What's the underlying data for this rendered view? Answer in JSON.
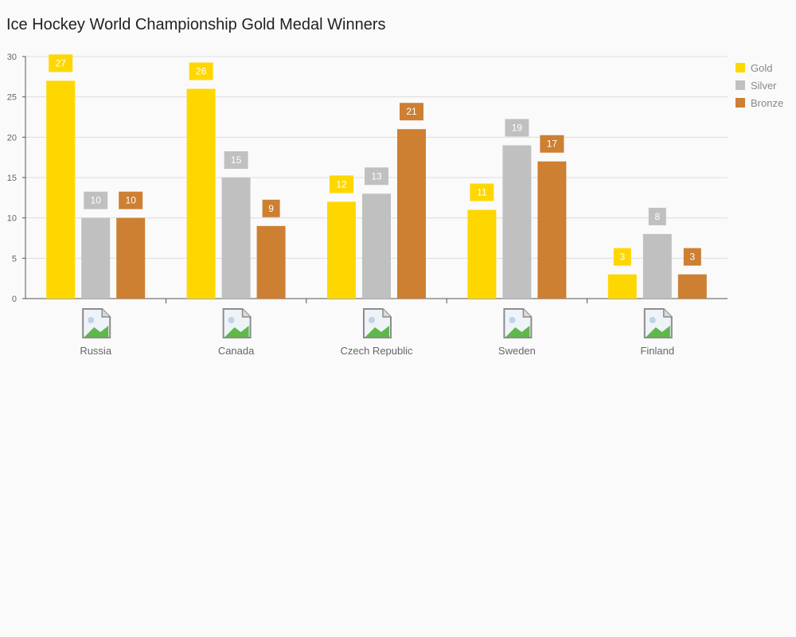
{
  "chart_data": {
    "type": "bar",
    "title": "Ice Hockey World Championship Gold Medal Winners",
    "categories": [
      "Russia",
      "Canada",
      "Czech Republic",
      "Sweden",
      "Finland"
    ],
    "series": [
      {
        "name": "Gold",
        "color": "#FFD700",
        "values": [
          27,
          26,
          12,
          11,
          3
        ]
      },
      {
        "name": "Silver",
        "color": "#C0C0C0",
        "values": [
          10,
          15,
          13,
          19,
          8
        ]
      },
      {
        "name": "Bronze",
        "color": "#CD7F32",
        "values": [
          10,
          9,
          21,
          17,
          3
        ]
      }
    ],
    "ylim": [
      0,
      30
    ],
    "yticks": [
      0,
      5,
      10,
      15,
      20,
      25,
      30
    ],
    "grid": true,
    "legend_position": "right",
    "category_icons": [
      "broken-image-icon",
      "broken-image-icon",
      "broken-image-icon",
      "broken-image-icon",
      "broken-image-icon"
    ]
  }
}
